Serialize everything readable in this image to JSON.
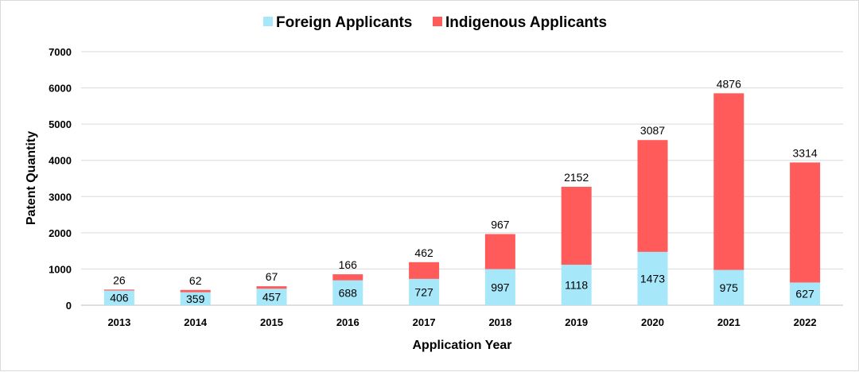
{
  "chart_data": {
    "type": "bar",
    "stacked": true,
    "categories": [
      "2013",
      "2014",
      "2015",
      "2016",
      "2017",
      "2018",
      "2019",
      "2020",
      "2021",
      "2022"
    ],
    "series": [
      {
        "name": "Foreign Applicants",
        "color": "#a6e7fa",
        "values": [
          406,
          359,
          457,
          688,
          727,
          997,
          1118,
          1473,
          975,
          627
        ]
      },
      {
        "name": "Indigenous Applicants",
        "color": "#ff5b5b",
        "values": [
          26,
          62,
          67,
          166,
          462,
          967,
          2152,
          3087,
          4876,
          3314
        ]
      }
    ],
    "xlabel": "Application Year",
    "ylabel": "Patent Quantity",
    "ylim": [
      0,
      7000
    ],
    "yticks": [
      "0",
      "1000",
      "2000",
      "3000",
      "4000",
      "5000",
      "6000",
      "7000"
    ],
    "grid": true,
    "legend_position": "top-center"
  }
}
